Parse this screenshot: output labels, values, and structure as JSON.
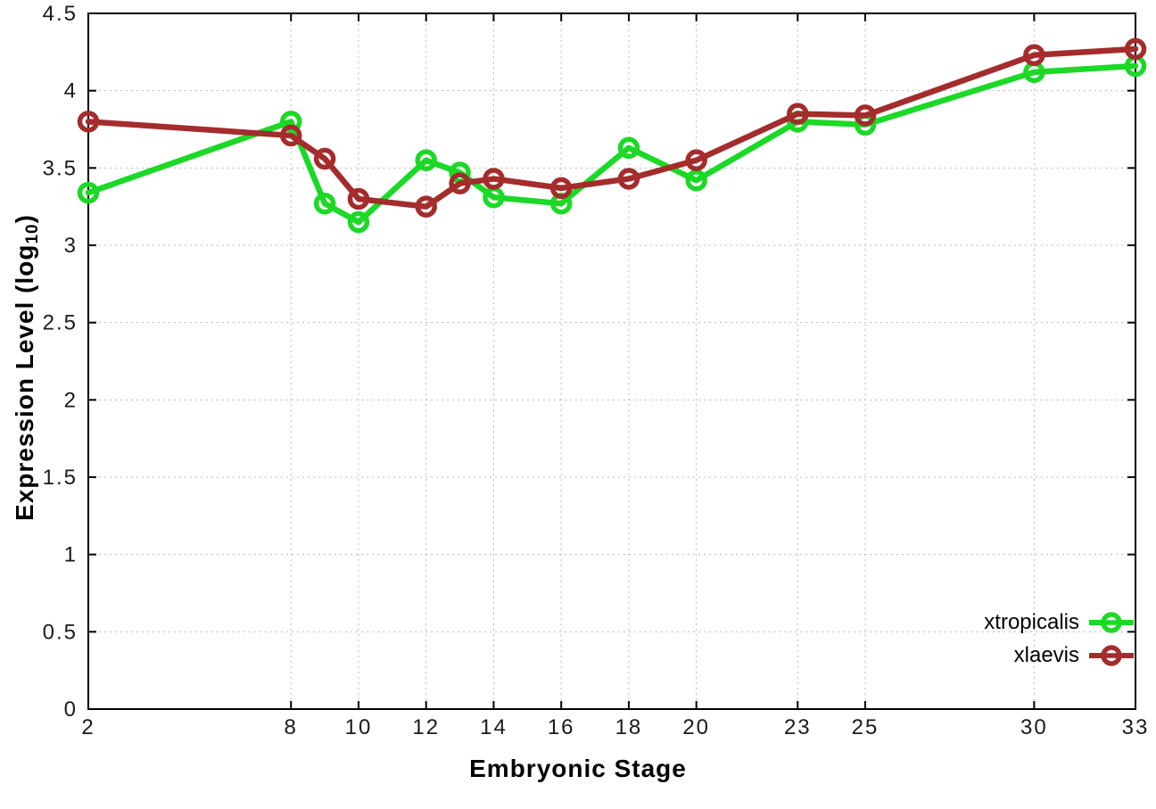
{
  "chart_data": {
    "type": "line",
    "title": "",
    "xlabel": "Embryonic Stage",
    "ylabel": "Expression Level (log10)",
    "ylabel_prefix": "Expression Level (log",
    "ylabel_sub": "10",
    "ylabel_suffix": ")",
    "xlim": [
      2,
      33
    ],
    "ylim": [
      0,
      4.5
    ],
    "grid": true,
    "grid_style": "dotted",
    "legend_position": "bottom-right",
    "marker_style": "open-circle",
    "xticks": [
      2,
      8,
      10,
      12,
      14,
      16,
      18,
      20,
      23,
      25,
      30,
      33
    ],
    "xtick_labels": [
      "2",
      "8",
      "10",
      "12",
      "14",
      "16",
      "18",
      "20",
      "23",
      "25",
      "30",
      "33"
    ],
    "yticks": [
      0,
      0.5,
      1,
      1.5,
      2,
      2.5,
      3,
      3.5,
      4,
      4.5
    ],
    "ytick_labels": [
      "0",
      "0.5",
      "1",
      "1.5",
      "2",
      "2.5",
      "3",
      "3.5",
      "4",
      "4.5"
    ],
    "x": [
      2,
      8,
      9,
      10,
      12,
      13,
      14,
      16,
      18,
      20,
      23,
      25,
      30,
      33
    ],
    "series": [
      {
        "name": "xtropicalis",
        "color": "#1bd926",
        "values": [
          3.34,
          3.8,
          3.27,
          3.15,
          3.55,
          3.47,
          3.31,
          3.27,
          3.63,
          3.42,
          3.8,
          3.78,
          4.12,
          4.16
        ]
      },
      {
        "name": "xlaevis",
        "color": "#a42c2c",
        "values": [
          3.8,
          3.71,
          3.56,
          3.3,
          3.25,
          3.4,
          3.43,
          3.37,
          3.43,
          3.55,
          3.85,
          3.84,
          4.23,
          4.27
        ]
      }
    ]
  }
}
